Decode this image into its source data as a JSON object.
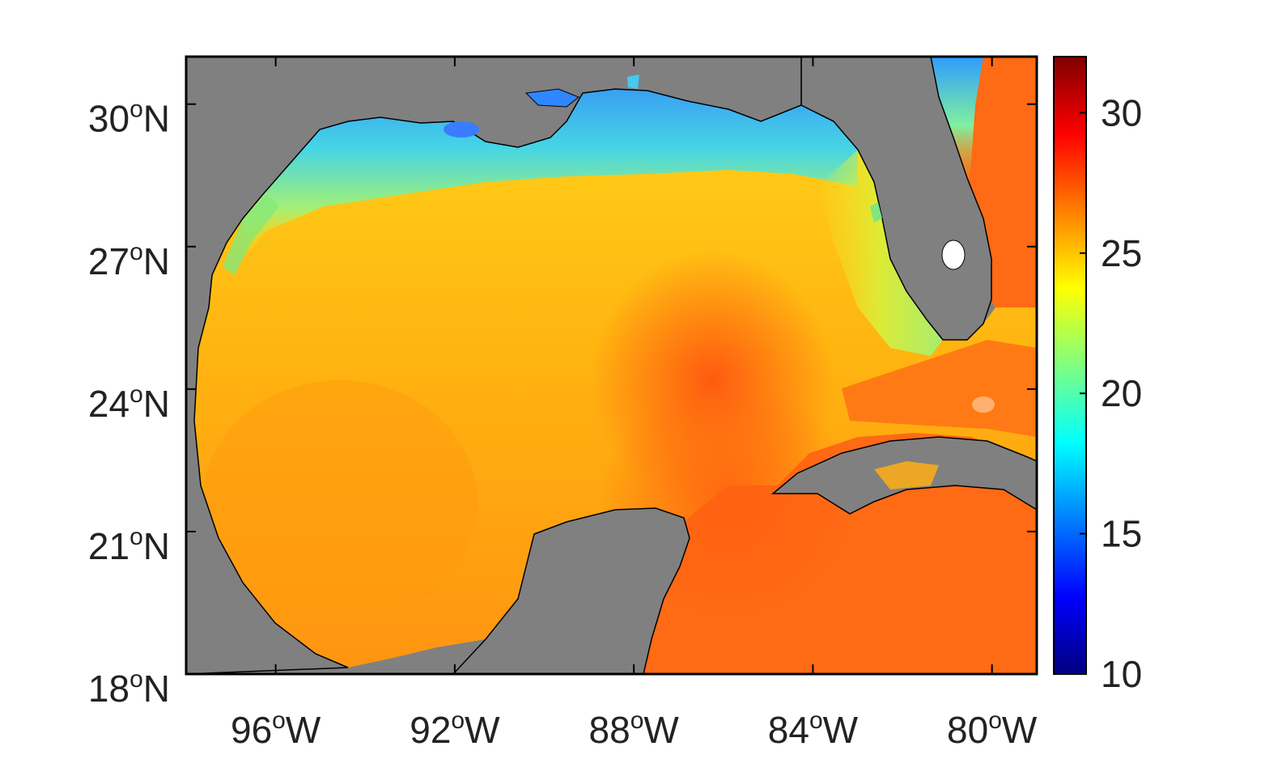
{
  "map": {
    "region": "Gulf of Mexico",
    "lon_range": [
      -98,
      -79
    ],
    "lat_range": [
      18,
      31
    ],
    "land_color": "#808080",
    "frame_color": "#000000",
    "y_ticks": [
      {
        "value": 30,
        "num": "30",
        "deg": "o",
        "hemi": "N"
      },
      {
        "value": 27,
        "num": "27",
        "deg": "o",
        "hemi": "N"
      },
      {
        "value": 24,
        "num": "24",
        "deg": "o",
        "hemi": "N"
      },
      {
        "value": 21,
        "num": "21",
        "deg": "o",
        "hemi": "N"
      },
      {
        "value": 18,
        "num": "18",
        "deg": "o",
        "hemi": "N"
      }
    ],
    "x_ticks": [
      {
        "value": -96,
        "num": "96",
        "deg": "o",
        "hemi": "W"
      },
      {
        "value": -92,
        "num": "92",
        "deg": "o",
        "hemi": "W"
      },
      {
        "value": -88,
        "num": "88",
        "deg": "o",
        "hemi": "W"
      },
      {
        "value": -84,
        "num": "84",
        "deg": "o",
        "hemi": "W"
      },
      {
        "value": -80,
        "num": "80",
        "deg": "o",
        "hemi": "W"
      }
    ]
  },
  "colorbar": {
    "colormap": "jet",
    "range": [
      10,
      32
    ],
    "colors": [
      "#00007f",
      "#0000ff",
      "#007fff",
      "#00ffff",
      "#7fff7f",
      "#ffff00",
      "#ff7f00",
      "#ff0000",
      "#7f0000"
    ],
    "ticks": [
      {
        "value": 30,
        "label": "30"
      },
      {
        "value": 25,
        "label": "25"
      },
      {
        "value": 20,
        "label": "20"
      },
      {
        "value": 15,
        "label": "15"
      },
      {
        "value": 10,
        "label": "10"
      }
    ]
  }
}
